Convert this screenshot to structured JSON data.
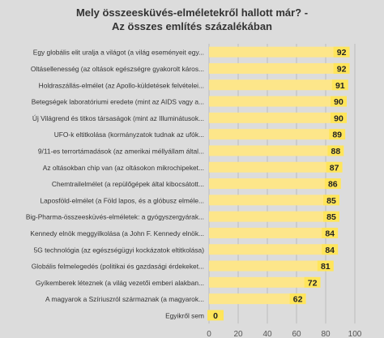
{
  "chart_data": {
    "type": "bar",
    "orientation": "horizontal",
    "title_line1": "Mely összeesküvés-elméletekről hallott már? -",
    "title_line2": "Az összes említés százalékában",
    "categories": [
      "Egy globális elit uralja a világot (a világ eseményeit egy...",
      "Oltásellenesség (az oltások egészségre gyakorolt káros...",
      "Holdraszállás-elmélet (az Apollo-küldetések felvételei...",
      "Betegségek laboratóriumi eredete (mint az AIDS vagy a...",
      "Új Világrend és titkos társaságok (mint az Illuminátusok...",
      "UFO-k eltitkolása (kormányzatok tudnak az ufók...",
      "9/11-es terrortámadások (az amerikai méllyállam által...",
      "Az oltásokban chip van (az oltásokon mikrochipeket...",
      "Chemtrailelmélet (a repülőgépek által kibocsátott...",
      "Laposföld-elmélet (a Föld lapos, és a glóbusz elméle...",
      "Big-Pharma-összeesküvés-elméletek: a gyógyszergyárak...",
      "Kennedy elnök meggyilkolása (a John F. Kennedy elnök...",
      "5G technológia (az egészségügyi kockázatok eltitkolása)",
      "Globális felmelegedés (politikai és gazdasági érdekeket...",
      "Gyíkemberek léteznek (a világ vezetői emberi alakban...",
      "A magyarok a Szíriuszról származnak (a magyarok...",
      "Egyikről sem"
    ],
    "values": [
      92,
      92,
      91,
      90,
      90,
      89,
      88,
      87,
      86,
      85,
      85,
      84,
      84,
      81,
      72,
      62,
      0
    ],
    "xlim": [
      0,
      100
    ],
    "xticks": [
      "0",
      "20",
      "40",
      "60",
      "80",
      "100"
    ],
    "grid": true,
    "bar_color": "#fde68a",
    "label_box_color": "#ffe55a"
  }
}
